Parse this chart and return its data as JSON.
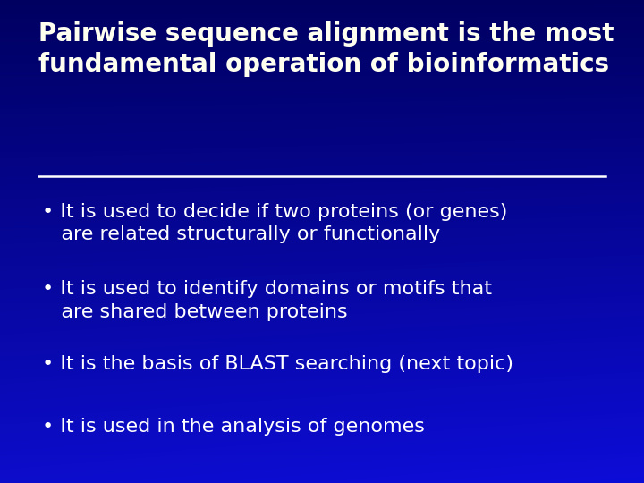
{
  "title_line1": "Pairwise sequence alignment is the most",
  "title_line2": "fundamental operation of bioinformatics",
  "bullets": [
    [
      "It is used to decide if two proteins (or genes)",
      "   are related structurally or functionally"
    ],
    [
      "It is used to identify domains or motifs that",
      "   are shared between proteins"
    ],
    [
      "It is the basis of BLAST searching (next topic)"
    ],
    [
      "It is used in the analysis of genomes"
    ]
  ],
  "title_color": "#FFFFF0",
  "bullet_color": "#FFFFFF",
  "line_color": "#FFFFFF",
  "title_fontsize": 20,
  "bullet_fontsize": 16
}
